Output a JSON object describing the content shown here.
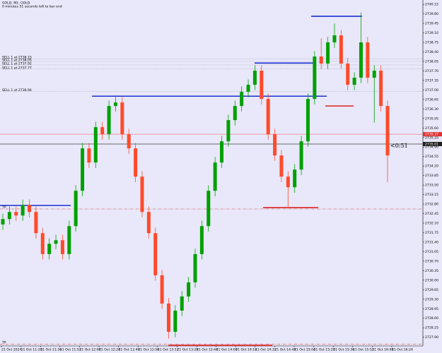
{
  "chart_data": {
    "type": "candlestick",
    "title": "GOLD, M1: GOLD",
    "subtitle": "0 minutes 51 seconds left to bar end",
    "timer": "<0:51",
    "ylim": [
      2727.58,
      2740.31
    ],
    "yticks": [
      2740.15,
      {
        "value": 2739.8,
        "label": "2739.80"
      },
      2739.45,
      {
        "value": 2739.1,
        "label": "2739.10"
      },
      2738.75,
      {
        "value": 2738.4,
        "label": "2738.40"
      },
      2738.05,
      {
        "value": 2737.7,
        "label": "2737.70"
      },
      2737.35,
      {
        "value": 2737.0,
        "label": "2737.00"
      },
      2736.65,
      {
        "value": 2736.3,
        "label": "2736.30"
      },
      2735.95,
      {
        "value": 2735.6,
        "label": "2735.60"
      },
      2735.25,
      {
        "value": 2734.9,
        "label": "2734.90"
      },
      2734.55,
      {
        "value": 2734.2,
        "label": "2734.20"
      },
      2733.85,
      {
        "value": 2733.5,
        "label": "2733.50"
      },
      2733.15,
      {
        "value": 2732.8,
        "label": "2732.80"
      },
      2732.45,
      {
        "value": 2732.1,
        "label": "2732.10"
      },
      2731.75,
      {
        "value": 2731.4,
        "label": "2731.40"
      },
      2731.05,
      {
        "value": 2730.7,
        "label": "2730.70"
      },
      2730.35,
      {
        "value": 2730.0,
        "label": "2730.00"
      },
      2729.65,
      {
        "value": 2729.3,
        "label": "2729.30"
      },
      2728.95,
      {
        "value": 2728.6,
        "label": "2728.60"
      },
      2728.25,
      {
        "value": 2727.9,
        "label": "2727.90"
      }
    ],
    "xtick_labels": [
      "21 Oct 2024",
      "21 Oct 11:20",
      "21 Oct 11:36",
      "21 Oct 11:52",
      "21 Oct 12:08",
      "21 Oct 12:24",
      "21 Oct 12:40",
      "21 Oct 12:56",
      "21 Oct 13:12",
      "21 Oct 13:28",
      "21 Oct 13:44",
      "21 Oct 14:00",
      "21 Oct 14:16",
      "21 Oct 14:32",
      "21 Oct 14:48",
      "21 Oct 15:04",
      "21 Oct 15:20",
      "21 Oct 15:36",
      "21 Oct 15:52",
      "21 Oct 16:08",
      "21 Oct 16:24"
    ],
    "up_color": "#00a000",
    "down_color": "#ff4a2a",
    "open": [
      2732.05,
      2732.25,
      2732.51,
      2732.38,
      2732.77,
      2732.51,
      2731.73,
      2730.96,
      2731.34,
      2731.47,
      2730.96,
      2731.99,
      2733.29,
      2734.85,
      2734.33,
      2735.63,
      2735.37,
      2736.41,
      2736.54,
      2735.37,
      2734.85,
      2733.81,
      2732.51,
      2731.73,
      2730.18,
      2729.14,
      2728.1,
      2728.88,
      2729.4,
      2729.92,
      2730.96,
      2731.99,
      2733.29,
      2734.33,
      2735.11,
      2735.89,
      2736.41,
      2736.93,
      2737.19,
      2737.71,
      2736.67,
      2735.37,
      2734.59,
      2733.81,
      2733.42,
      2734.07,
      2735.11,
      2736.67,
      2738.23,
      2737.97,
      2738.75,
      2739.01,
      2737.97,
      2737.19,
      2737.45,
      2738.75,
      2737.45,
      2737.71,
      2736.41
    ],
    "high": [
      2732.45,
      2732.71,
      2732.71,
      2732.97,
      2732.97,
      2732.71,
      2731.93,
      2731.54,
      2731.67,
      2731.67,
      2732.19,
      2733.49,
      2735.05,
      2735.05,
      2735.83,
      2735.83,
      2736.61,
      2736.8,
      2736.74,
      2735.57,
      2735.05,
      2734.01,
      2732.71,
      2731.93,
      2730.38,
      2729.34,
      2729.08,
      2729.6,
      2730.12,
      2731.16,
      2732.19,
      2733.49,
      2734.53,
      2735.31,
      2736.09,
      2736.61,
      2737.13,
      2737.39,
      2737.91,
      2737.91,
      2736.87,
      2735.57,
      2734.79,
      2734.01,
      2734.27,
      2735.31,
      2736.87,
      2738.43,
      2738.9,
      2738.95,
      2739.45,
      2739.21,
      2738.17,
      2737.65,
      2739.85,
      2738.95,
      2737.91,
      2737.91,
      2736.61
    ],
    "low": [
      2731.85,
      2732.05,
      2732.18,
      2732.18,
      2732.31,
      2731.53,
      2730.76,
      2730.76,
      2731.14,
      2730.76,
      2730.76,
      2731.79,
      2733.09,
      2734.13,
      2734.13,
      2735.17,
      2735.17,
      2736.21,
      2735.17,
      2734.65,
      2733.61,
      2732.31,
      2731.53,
      2729.98,
      2728.94,
      2727.85,
      2727.9,
      2728.68,
      2729.2,
      2729.72,
      2730.76,
      2731.79,
      2733.09,
      2734.13,
      2734.91,
      2735.69,
      2736.21,
      2736.73,
      2736.99,
      2736.47,
      2735.17,
      2734.39,
      2733.61,
      2732.7,
      2733.22,
      2733.87,
      2734.91,
      2736.47,
      2737.77,
      2737.77,
      2738.55,
      2737.77,
      2736.99,
      2736.99,
      2737.25,
      2737.25,
      2735.8,
      2736.21,
      2733.6
    ],
    "close": [
      2732.25,
      2732.51,
      2732.38,
      2732.77,
      2732.51,
      2731.73,
      2730.96,
      2731.34,
      2731.47,
      2730.96,
      2731.99,
      2733.29,
      2734.85,
      2734.33,
      2735.63,
      2735.37,
      2736.41,
      2736.54,
      2735.37,
      2734.85,
      2733.81,
      2732.51,
      2731.73,
      2730.18,
      2729.14,
      2728.1,
      2728.88,
      2729.4,
      2729.92,
      2730.96,
      2731.99,
      2733.29,
      2734.33,
      2735.11,
      2735.89,
      2736.41,
      2736.93,
      2737.19,
      2737.71,
      2736.67,
      2735.37,
      2734.59,
      2733.81,
      2733.42,
      2734.07,
      2735.11,
      2736.67,
      2738.23,
      2737.97,
      2738.75,
      2739.01,
      2737.97,
      2737.19,
      2737.45,
      2738.75,
      2737.45,
      2737.71,
      2736.41,
      2734.59
    ],
    "orders": [
      {
        "label": "SELL 1 at 2738.15",
        "price": 2738.15
      },
      {
        "label": "SELL 1 at 2738.05",
        "price": 2738.05
      },
      {
        "label": "SELL 1 at 2737.92",
        "price": 2737.92
      },
      {
        "label": "SELL 1 at 2737.77",
        "price": 2737.77
      },
      {
        "label": "SELL 1 at 2736.94",
        "price": 2736.94
      }
    ],
    "tp": [
      {
        "label": "TP",
        "price": 2732.62
      },
      {
        "label": "TP",
        "price": 2727.65
      }
    ],
    "levels": [
      {
        "price": 2732.75,
        "color": "#1a2fd0"
      },
      {
        "price": 2736.77,
        "color": "#1a2fd0"
      },
      {
        "price": 2737.99,
        "color": "#1a2fd0"
      },
      {
        "price": 2739.71,
        "color": "#1a2fd0"
      },
      {
        "price": 2736.41,
        "color": "#e02020"
      },
      {
        "price": 2732.67,
        "color": "#e02020"
      },
      {
        "price": 2727.6,
        "color": "#e02020"
      }
    ],
    "bid": 2735.01,
    "ask": 2735.37
  }
}
